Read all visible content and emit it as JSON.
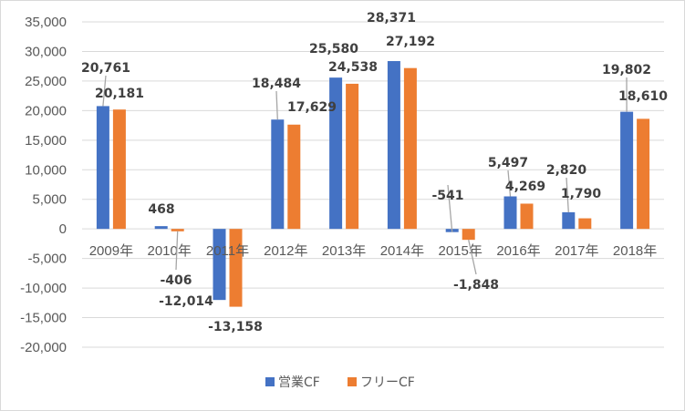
{
  "chart_data": {
    "type": "bar",
    "categories": [
      "2009年",
      "2010年",
      "2011年",
      "2012年",
      "2013年",
      "2014年",
      "2015年",
      "2016年",
      "2017年",
      "2018年"
    ],
    "series": [
      {
        "name": "営業CF",
        "color": "#4472C4",
        "values": [
          20761,
          468,
          -12014,
          18484,
          25580,
          28371,
          -541,
          5497,
          2820,
          19802
        ],
        "labels": [
          "20,761",
          "468",
          "-12,014",
          "18,484",
          "25,580",
          "28,371",
          "-541",
          "5,497",
          "2,820",
          "19,802"
        ]
      },
      {
        "name": "フリーCF",
        "color": "#ED7D31",
        "values": [
          20181,
          -406,
          -13158,
          17629,
          24538,
          27192,
          -1848,
          4269,
          1790,
          18610
        ],
        "labels": [
          "20,181",
          "-406",
          "-13,158",
          "17,629",
          "24,538",
          "27,192",
          "-1,848",
          "4,269",
          "1,790",
          "18,610"
        ]
      }
    ],
    "ylim": [
      -20000,
      35000
    ],
    "yticks": [
      35000,
      30000,
      25000,
      20000,
      15000,
      10000,
      5000,
      0,
      -5000,
      -10000,
      -15000,
      -20000
    ],
    "ytick_labels": [
      "35,000",
      "30,000",
      "25,000",
      "20,000",
      "15,000",
      "10,000",
      "5,000",
      "0",
      "-5,000",
      "-10,000",
      "-15,000",
      "-20,000"
    ],
    "grid": true,
    "legend": "bottom",
    "title": "",
    "xlabel": "",
    "ylabel": ""
  }
}
